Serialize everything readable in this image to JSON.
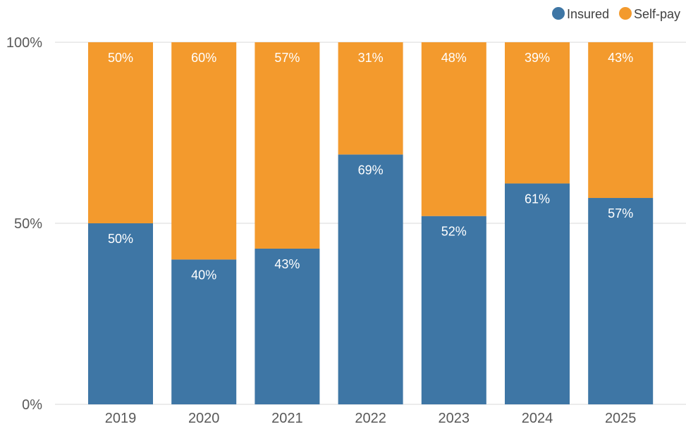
{
  "chart_data": {
    "type": "bar",
    "stacked": true,
    "percent_stacked": true,
    "categories": [
      "2019",
      "2020",
      "2021",
      "2022",
      "2023",
      "2024",
      "2025"
    ],
    "series": [
      {
        "name": "Insured",
        "color": "#3e76a5",
        "values": [
          50,
          40,
          43,
          69,
          52,
          61,
          57
        ]
      },
      {
        "name": "Self-pay",
        "color": "#f39a2d",
        "values": [
          50,
          60,
          57,
          31,
          48,
          39,
          43
        ]
      }
    ],
    "value_labels": {
      "Insured": [
        "50%",
        "40%",
        "43%",
        "69%",
        "52%",
        "61%",
        "57%"
      ],
      "Self-pay": [
        "50%",
        "60%",
        "57%",
        "31%",
        "48%",
        "39%",
        "43%"
      ]
    },
    "y_ticks": [
      0,
      50,
      100
    ],
    "y_tick_labels": [
      "0%",
      "50%",
      "100%"
    ],
    "ylim": [
      0,
      100
    ],
    "grid": true,
    "legend_position": "top-right",
    "title": "",
    "xlabel": "",
    "ylabel": ""
  }
}
